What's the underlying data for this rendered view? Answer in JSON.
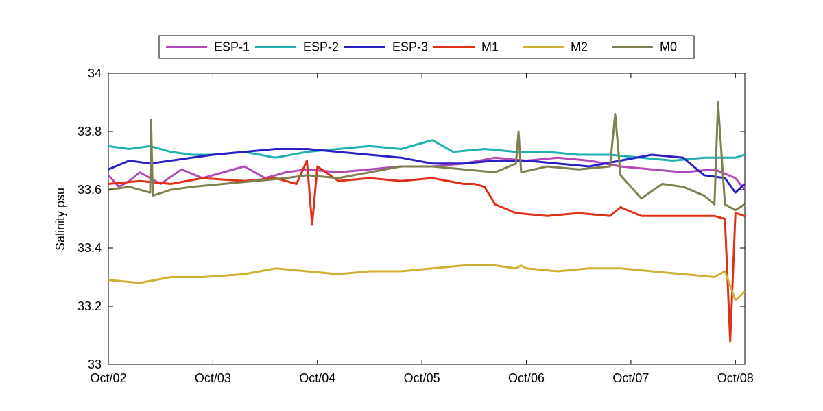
{
  "chart_data": {
    "type": "line",
    "title": "",
    "xlabel": "",
    "ylabel": "Salinity psu",
    "ylim": [
      33,
      34
    ],
    "xlim": [
      "Oct/02",
      "Oct/08+0.09"
    ],
    "xticks": [
      "Oct/02",
      "Oct/03",
      "Oct/04",
      "Oct/05",
      "Oct/06",
      "Oct/07",
      "Oct/08"
    ],
    "yticks": [
      "33",
      "33.2",
      "33.4",
      "33.6",
      "33.8",
      "34"
    ],
    "grid": false,
    "legend_position": "top-center",
    "series": [
      {
        "name": "ESP-1",
        "color": "#b04ab8",
        "x": [
          "Oct/02",
          "Oct/02 02:24",
          "Oct/02 04:48",
          "Oct/02 07:12",
          "Oct/02 09:36",
          "Oct/02 12:00",
          "Oct/02 16:48",
          "Oct/02 21:36",
          "Oct/03 02:24",
          "Oct/03 07:12",
          "Oct/03 12:00",
          "Oct/03 16:48",
          "Oct/03 21:36",
          "Oct/04 04:48",
          "Oct/04 12:00",
          "Oct/04 19:12",
          "Oct/05 02:24",
          "Oct/05 09:36",
          "Oct/05 16:48",
          "Oct/06 00:00",
          "Oct/06 07:12",
          "Oct/06 14:24",
          "Oct/06 21:36",
          "Oct/07 04:48",
          "Oct/07 12:00",
          "Oct/07 19:12",
          "Oct/08 00:00",
          "Oct/08 02:09"
        ],
        "y": [
          33.65,
          33.61,
          33.63,
          33.66,
          33.64,
          33.62,
          33.67,
          33.64,
          33.66,
          33.68,
          33.64,
          33.66,
          33.67,
          33.66,
          33.67,
          33.68,
          33.68,
          33.69,
          33.71,
          33.7,
          33.71,
          33.7,
          33.68,
          33.67,
          33.66,
          33.67,
          33.64,
          33.6
        ]
      },
      {
        "name": "ESP-2",
        "color": "#20b0b0",
        "x": [
          "Oct/02",
          "Oct/02 04:48",
          "Oct/02 09:36",
          "Oct/02 14:24",
          "Oct/02 19:12",
          "Oct/03 00:00",
          "Oct/03 07:12",
          "Oct/03 14:24",
          "Oct/03 21:36",
          "Oct/04 04:48",
          "Oct/04 12:00",
          "Oct/04 19:12",
          "Oct/05 00:00",
          "Oct/05 02:24",
          "Oct/05 07:12",
          "Oct/05 14:24",
          "Oct/05 21:36",
          "Oct/06 04:48",
          "Oct/06 12:00",
          "Oct/06 19:12",
          "Oct/07 02:24",
          "Oct/07 09:36",
          "Oct/07 16:48",
          "Oct/08 00:00",
          "Oct/08 02:09"
        ],
        "y": [
          33.75,
          33.74,
          33.75,
          33.73,
          33.72,
          33.72,
          33.73,
          33.71,
          33.73,
          33.74,
          33.75,
          33.74,
          33.76,
          33.77,
          33.73,
          33.74,
          33.73,
          33.73,
          33.72,
          33.72,
          33.71,
          33.7,
          33.71,
          33.71,
          33.72
        ]
      },
      {
        "name": "ESP-3",
        "color": "#2a1fc4",
        "x": [
          "Oct/02",
          "Oct/02 04:48",
          "Oct/02 09:36",
          "Oct/02 14:24",
          "Oct/02 19:12",
          "Oct/03 00:00",
          "Oct/03 07:12",
          "Oct/03 14:24",
          "Oct/03 21:36",
          "Oct/04 04:48",
          "Oct/04 12:00",
          "Oct/04 19:12",
          "Oct/05 02:24",
          "Oct/05 09:36",
          "Oct/05 16:48",
          "Oct/06 00:00",
          "Oct/06 07:12",
          "Oct/06 14:24",
          "Oct/06 21:36",
          "Oct/07 04:48",
          "Oct/07 12:00",
          "Oct/07 16:48",
          "Oct/07 21:36",
          "Oct/08 00:00",
          "Oct/08 02:09"
        ],
        "y": [
          33.67,
          33.7,
          33.69,
          33.7,
          33.71,
          33.72,
          33.73,
          33.74,
          33.74,
          33.73,
          33.72,
          33.71,
          33.69,
          33.69,
          33.7,
          33.7,
          33.69,
          33.68,
          33.7,
          33.72,
          33.71,
          33.65,
          33.64,
          33.59,
          33.62
        ]
      },
      {
        "name": "M1",
        "color": "#e03018",
        "x": [
          "Oct/02",
          "Oct/02 07:12",
          "Oct/02 14:24",
          "Oct/02 21:36",
          "Oct/03 07:12",
          "Oct/03 14:24",
          "Oct/03 19:12",
          "Oct/03 21:36",
          "Oct/03 22:48",
          "Oct/04 00:00",
          "Oct/04 04:48",
          "Oct/04 12:00",
          "Oct/04 19:12",
          "Oct/05 02:24",
          "Oct/05 09:36",
          "Oct/05 12:00",
          "Oct/05 14:24",
          "Oct/05 16:48",
          "Oct/05 21:36",
          "Oct/06 04:48",
          "Oct/06 12:00",
          "Oct/06 19:12",
          "Oct/06 21:36",
          "Oct/07 02:24",
          "Oct/07 12:00",
          "Oct/07 19:12",
          "Oct/07 21:36",
          "Oct/07 22:48",
          "Oct/08 00:00",
          "Oct/08 02:09"
        ],
        "y": [
          33.62,
          33.63,
          33.62,
          33.64,
          33.63,
          33.64,
          33.62,
          33.7,
          33.48,
          33.68,
          33.63,
          33.64,
          33.63,
          33.64,
          33.62,
          33.62,
          33.61,
          33.55,
          33.52,
          33.51,
          33.52,
          33.51,
          33.54,
          33.51,
          33.51,
          33.51,
          33.5,
          33.08,
          33.52,
          33.51
        ]
      },
      {
        "name": "M2",
        "color": "#d0b030",
        "x": [
          "Oct/02",
          "Oct/02 07:12",
          "Oct/02 14:24",
          "Oct/02 21:36",
          "Oct/03 07:12",
          "Oct/03 14:24",
          "Oct/03 21:36",
          "Oct/04 04:48",
          "Oct/04 12:00",
          "Oct/04 19:12",
          "Oct/05 02:24",
          "Oct/05 09:36",
          "Oct/05 16:48",
          "Oct/05 21:36",
          "Oct/05 22:48",
          "Oct/06 00:00",
          "Oct/06 07:12",
          "Oct/06 14:24",
          "Oct/06 21:36",
          "Oct/07 04:48",
          "Oct/07 12:00",
          "Oct/07 19:12",
          "Oct/07 21:36",
          "Oct/08 00:00",
          "Oct/08 02:09"
        ],
        "y": [
          33.29,
          33.28,
          33.3,
          33.3,
          33.31,
          33.33,
          33.32,
          33.31,
          33.32,
          33.32,
          33.33,
          33.34,
          33.34,
          33.33,
          33.34,
          33.33,
          33.32,
          33.33,
          33.33,
          33.32,
          33.31,
          33.3,
          33.32,
          33.22,
          33.25
        ]
      },
      {
        "name": "M0",
        "color": "#7f7f50",
        "x": [
          "Oct/02",
          "Oct/02 04:48",
          "Oct/02 09:36",
          "Oct/02 09:48",
          "Oct/02 10:12",
          "Oct/02 14:24",
          "Oct/02 19:12",
          "Oct/03 02:24",
          "Oct/03 09:36",
          "Oct/03 16:48",
          "Oct/03 21:36",
          "Oct/04 04:48",
          "Oct/04 12:00",
          "Oct/04 19:12",
          "Oct/05 02:24",
          "Oct/05 09:36",
          "Oct/05 16:48",
          "Oct/05 21:36",
          "Oct/05 22:12",
          "Oct/05 22:48",
          "Oct/06 04:48",
          "Oct/06 12:00",
          "Oct/06 19:12",
          "Oct/06 20:24",
          "Oct/06 21:36",
          "Oct/07 02:24",
          "Oct/07 07:12",
          "Oct/07 12:00",
          "Oct/07 16:48",
          "Oct/07 19:12",
          "Oct/07 20:00",
          "Oct/07 21:36",
          "Oct/08 00:00",
          "Oct/08 02:09"
        ],
        "y": [
          33.6,
          33.61,
          33.59,
          33.84,
          33.58,
          33.6,
          33.61,
          33.62,
          33.63,
          33.64,
          33.65,
          33.64,
          33.66,
          33.68,
          33.68,
          33.67,
          33.66,
          33.69,
          33.8,
          33.66,
          33.68,
          33.67,
          33.68,
          33.86,
          33.65,
          33.57,
          33.62,
          33.61,
          33.58,
          33.55,
          33.9,
          33.55,
          33.53,
          33.55
        ]
      }
    ]
  }
}
